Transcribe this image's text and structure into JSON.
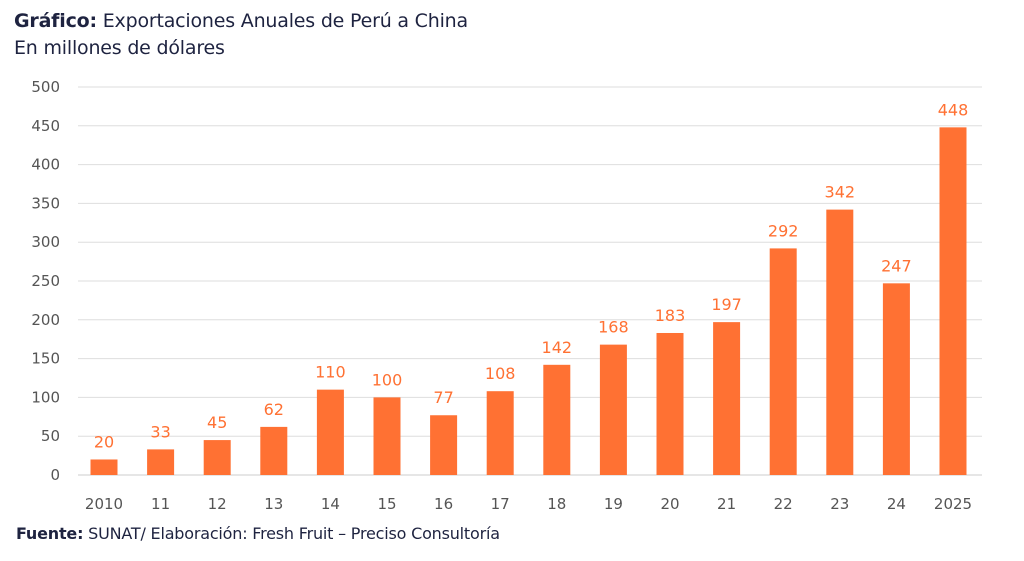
{
  "header": {
    "title_bold": "Gráfico:",
    "title_rest": "Exportaciones Anuales de Perú a China",
    "subtitle": "En millones de dólares"
  },
  "footer": {
    "source_bold": "Fuente:",
    "source_rest": "SUNAT/ Elaboración: Fresh Fruit – Preciso Consultoría"
  },
  "colors": {
    "bar": "#ff7133",
    "grid": "#dedede",
    "text": "#1e2340"
  },
  "chart_data": {
    "type": "bar",
    "title": "Exportaciones Anuales de Perú a China",
    "subtitle": "En millones de dólares",
    "xlabel": "",
    "ylabel": "",
    "categories": [
      "2010",
      "11",
      "12",
      "13",
      "14",
      "15",
      "16",
      "17",
      "18",
      "19",
      "20",
      "21",
      "22",
      "23",
      "24",
      "2025"
    ],
    "values": [
      20,
      33,
      45,
      62,
      110,
      100,
      77,
      108,
      142,
      168,
      183,
      197,
      292,
      342,
      247,
      448
    ],
    "ylim": [
      0,
      500
    ],
    "yticks": [
      0,
      50,
      100,
      150,
      200,
      250,
      300,
      350,
      400,
      450,
      500
    ],
    "grid": true,
    "legend": "none"
  }
}
